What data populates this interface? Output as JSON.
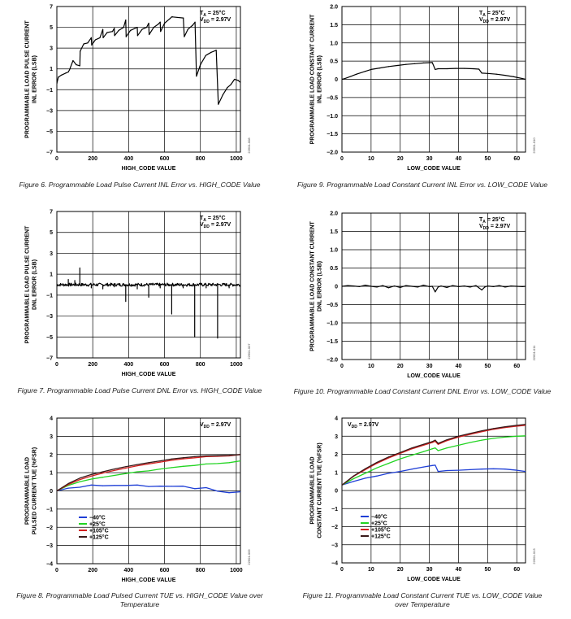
{
  "chart_data": [
    {
      "type": "line",
      "xlabel": "HIGH_CODE VALUE",
      "ylabel": [
        "PROGRAMMABLE LOAD PULSE CURRENT",
        "INL ERROR (LSB)"
      ],
      "xlim": [
        0,
        1023
      ],
      "ylim": [
        -7,
        7
      ],
      "xticks": [
        "0",
        "200",
        "400",
        "600",
        "800",
        "1000"
      ],
      "yticks": [
        "7",
        "5",
        "3",
        "1",
        "−1",
        "−3",
        "−5",
        "−7"
      ],
      "conditions": [
        {
          "main": "T",
          "sub": "A",
          "rest": " = 25°C"
        },
        {
          "main": "V",
          "sub": "DD",
          "rest": " = 2.97V"
        }
      ],
      "caption": "Figure 6. Programmable Load Pulse Current INL Error vs. HIGH_CODE Value",
      "figure_id": "22601-008",
      "grid": true,
      "series": [
        {
          "color": "#000000",
          "x": [
            0,
            8,
            25,
            50,
            64,
            70,
            90,
            108,
            128,
            130,
            150,
            172,
            192,
            194,
            215,
            240,
            256,
            258,
            280,
            310,
            320,
            322,
            345,
            372,
            384,
            386,
            410,
            435,
            448,
            450,
            475,
            500,
            512,
            514,
            540,
            565,
            576,
            578,
            600,
            628,
            640,
            645,
            705,
            710,
            730,
            757,
            770,
            778,
            800,
            830,
            860,
            875,
            888,
            900,
            925,
            950,
            970,
            990,
            1010,
            1023
          ],
          "y": [
            -0.4,
            0.2,
            0.4,
            0.6,
            0.7,
            0.9,
            1.8,
            1.4,
            1.3,
            2.7,
            3.4,
            3.5,
            4.0,
            3.3,
            3.8,
            4.0,
            4.8,
            4.0,
            4.5,
            4.6,
            4.9,
            4.2,
            4.7,
            5.0,
            5.7,
            4.1,
            4.7,
            4.9,
            5.0,
            4.2,
            4.8,
            5.0,
            5.4,
            4.3,
            5.0,
            5.3,
            5.5,
            4.6,
            5.4,
            5.8,
            6.0,
            6.0,
            5.9,
            4.1,
            4.8,
            5.2,
            5.5,
            0.3,
            1.4,
            2.3,
            2.6,
            2.7,
            2.8,
            -2.4,
            -1.5,
            -0.8,
            -0.5,
            0.0,
            -0.1,
            -0.3
          ]
        }
      ]
    },
    {
      "type": "line",
      "xlabel": "LOW_CODE VALUE",
      "ylabel": [
        "PROGRAMMABLE LOAD CONSTANT CURRENT",
        "INL ERROR (LSB)"
      ],
      "xlim": [
        0,
        63
      ],
      "ylim": [
        -2,
        2
      ],
      "xticks": [
        "0",
        "10",
        "20",
        "30",
        "40",
        "50",
        "60"
      ],
      "yticks": [
        "2.0",
        "1.5",
        "1.0",
        "0.5",
        "0",
        "−0.5",
        "−1.0",
        "−1.5",
        "−2.0"
      ],
      "conditions": [
        {
          "main": "T",
          "sub": "A",
          "rest": " = 25°C"
        },
        {
          "main": "V",
          "sub": "DD",
          "rest": " = 2.97V"
        }
      ],
      "caption": "Figure 9. Programmable Load Constant Current INL Error vs. LOW_CODE Value",
      "figure_id": "22601-010",
      "grid": true,
      "series": [
        {
          "color": "#000000",
          "x": [
            0,
            1,
            3,
            5,
            8,
            10,
            13,
            16,
            19,
            22,
            25,
            28,
            31,
            32,
            33,
            36,
            39,
            42,
            45,
            47,
            48,
            50,
            53,
            56,
            59,
            62,
            63
          ],
          "y": [
            0.0,
            0.02,
            0.08,
            0.14,
            0.22,
            0.27,
            0.31,
            0.35,
            0.38,
            0.41,
            0.43,
            0.45,
            0.46,
            0.27,
            0.29,
            0.29,
            0.3,
            0.3,
            0.29,
            0.28,
            0.17,
            0.16,
            0.14,
            0.11,
            0.07,
            0.02,
            0.0
          ]
        }
      ]
    },
    {
      "type": "line",
      "xlabel": "HIGH_CODE VALUE",
      "ylabel": [
        "PROGRAMMABLE LOAD PULSE CURRENT",
        "DNL ERROR (LSB)"
      ],
      "xlim": [
        0,
        1023
      ],
      "ylim": [
        -7,
        7
      ],
      "xticks": [
        "0",
        "200",
        "400",
        "600",
        "800",
        "1000"
      ],
      "yticks": [
        "7",
        "5",
        "3",
        "1",
        "−1",
        "−3",
        "−5",
        "−7"
      ],
      "conditions": [
        {
          "main": "T",
          "sub": "A",
          "rest": " = 25°C"
        },
        {
          "main": "V",
          "sub": "DD",
          "rest": " = 2.97V"
        }
      ],
      "caption": "Figure 7. Programmable Load Pulse Current DNL Error vs. HIGH_CODE Value",
      "figure_id": "22601-007",
      "grid": true,
      "series": [
        {
          "color": "#000000",
          "baseline": 0,
          "noise": 0.15,
          "spikes": [
            [
              64,
              0.5
            ],
            [
              100,
              0.4
            ],
            [
              128,
              1.6
            ],
            [
              192,
              -0.3
            ],
            [
              256,
              -0.4
            ],
            [
              320,
              -0.2
            ],
            [
              384,
              -1.6
            ],
            [
              448,
              -0.4
            ],
            [
              512,
              -1.2
            ],
            [
              576,
              -0.3
            ],
            [
              640,
              -2.8
            ],
            [
              704,
              -0.3
            ],
            [
              768,
              -5.0
            ],
            [
              832,
              -0.3
            ],
            [
              896,
              -5.1
            ],
            [
              960,
              -0.3
            ]
          ]
        }
      ]
    },
    {
      "type": "line",
      "xlabel": "LOW_CODE VALUE",
      "ylabel": [
        "PROGRAMMABLE LOAD CONSTANT CURRENT",
        "DNL ERROR (LSB)"
      ],
      "xlim": [
        0,
        63
      ],
      "ylim": [
        -2,
        2
      ],
      "xticks": [
        "0",
        "10",
        "20",
        "30",
        "40",
        "50",
        "60"
      ],
      "yticks": [
        "2.0",
        "1.5",
        "1.0",
        "0.5",
        "0",
        "−0.5",
        "−1.0",
        "−1.5",
        "−2.0"
      ],
      "conditions": [
        {
          "main": "T",
          "sub": "A",
          "rest": " = 25°C"
        },
        {
          "main": "V",
          "sub": "DD",
          "rest": " = 2.97V"
        }
      ],
      "caption": "Figure 10. Programmable Load Constant Current DNL Error vs. LOW_CODE Value",
      "figure_id": "22601-011",
      "grid": true,
      "series": [
        {
          "color": "#000000",
          "x": [
            0,
            2,
            4,
            6,
            8,
            10,
            12,
            14,
            16,
            18,
            20,
            22,
            24,
            26,
            28,
            30,
            31,
            32,
            33,
            34,
            36,
            38,
            40,
            42,
            44,
            46,
            47,
            48,
            49,
            50,
            52,
            54,
            56,
            58,
            60,
            62,
            63
          ],
          "y": [
            0.0,
            0.02,
            0.01,
            -0.01,
            0.03,
            0.0,
            -0.02,
            0.02,
            -0.04,
            0.01,
            -0.03,
            0.02,
            0.0,
            -0.02,
            0.03,
            -0.01,
            0.0,
            -0.15,
            -0.02,
            0.01,
            -0.03,
            0.02,
            -0.01,
            0.01,
            -0.02,
            0.02,
            -0.04,
            -0.1,
            -0.02,
            0.01,
            -0.01,
            0.02,
            -0.02,
            0.01,
            0.0,
            -0.01,
            0.0
          ]
        }
      ]
    },
    {
      "type": "line",
      "xlabel": "HIGH_CODE VALUE",
      "ylabel": [
        "PROGRAMMABLE LOAD",
        "PULSED CURRENT TUE (%FSR)"
      ],
      "xlim": [
        0,
        1023
      ],
      "ylim": [
        -4,
        4
      ],
      "xticks": [
        "0",
        "200",
        "400",
        "600",
        "800",
        "1000"
      ],
      "yticks": [
        "4",
        "3",
        "2",
        "1",
        "0",
        "−1",
        "−2",
        "−3",
        "−4"
      ],
      "conditions": [
        {
          "main": "V",
          "sub": "DD",
          "rest": " = 2.97V"
        }
      ],
      "caption": [
        "Figure 8. Programmable Load Pulsed Current TUE vs. HIGH_CODE Value over",
        "Temperature"
      ],
      "figure_id": "22601-009",
      "grid": true,
      "legend": "lower-left",
      "series": [
        {
          "name": "−40°C",
          "color": "#1f3fd6",
          "x": [
            0,
            64,
            128,
            192,
            256,
            320,
            384,
            448,
            512,
            576,
            640,
            704,
            768,
            832,
            896,
            960,
            1023
          ],
          "y": [
            0.0,
            0.15,
            0.2,
            0.32,
            0.28,
            0.3,
            0.3,
            0.32,
            0.24,
            0.26,
            0.25,
            0.26,
            0.12,
            0.18,
            -0.02,
            -0.1,
            -0.05
          ]
        },
        {
          "name": "+25°C",
          "color": "#22d422",
          "x": [
            0,
            64,
            128,
            192,
            256,
            320,
            384,
            448,
            512,
            576,
            640,
            704,
            768,
            832,
            896,
            960,
            1023
          ],
          "y": [
            0.0,
            0.3,
            0.5,
            0.65,
            0.75,
            0.85,
            0.95,
            1.05,
            1.1,
            1.2,
            1.28,
            1.35,
            1.4,
            1.48,
            1.5,
            1.55,
            1.65
          ]
        },
        {
          "name": "+105°C",
          "color": "#d41f1f",
          "x": [
            0,
            64,
            128,
            192,
            256,
            320,
            384,
            448,
            512,
            576,
            640,
            704,
            768,
            832,
            896,
            960,
            1023
          ],
          "y": [
            0.0,
            0.35,
            0.62,
            0.82,
            0.98,
            1.12,
            1.25,
            1.38,
            1.48,
            1.58,
            1.68,
            1.76,
            1.82,
            1.88,
            1.9,
            1.92,
            2.0
          ]
        },
        {
          "name": "+125°C",
          "color": "#3a1a1a",
          "x": [
            0,
            64,
            128,
            192,
            256,
            320,
            384,
            448,
            512,
            576,
            640,
            704,
            768,
            832,
            896,
            960,
            1023
          ],
          "y": [
            0.0,
            0.4,
            0.7,
            0.9,
            1.05,
            1.2,
            1.33,
            1.45,
            1.55,
            1.65,
            1.75,
            1.82,
            1.88,
            1.92,
            1.93,
            1.95,
            2.0
          ]
        }
      ]
    },
    {
      "type": "line",
      "xlabel": "LOW_CODE VALUE",
      "ylabel": [
        "PROGRAMMABLE LOAD",
        "CONSTANT CURRENT TUE (%FSR)"
      ],
      "xlim": [
        0,
        63
      ],
      "ylim": [
        -4,
        4
      ],
      "xticks": [
        "0",
        "10",
        "20",
        "30",
        "40",
        "50",
        "60"
      ],
      "yticks": [
        "4",
        "3",
        "2",
        "1",
        "0",
        "−1",
        "−2",
        "−3",
        "−4"
      ],
      "conditions": [
        {
          "main": "V",
          "sub": "DD",
          "rest": " = 2.97V"
        }
      ],
      "caption": [
        "Figure 11. Programmable Load Constant Current TUE vs. LOW_CODE Value",
        "over Temperature"
      ],
      "figure_id": "22601-013",
      "grid": true,
      "legend": "lower-left",
      "series": [
        {
          "name": "−40°C",
          "color": "#1f3fd6",
          "x": [
            0,
            4,
            8,
            12,
            16,
            20,
            24,
            28,
            31,
            32,
            33,
            36,
            40,
            44,
            48,
            52,
            56,
            60,
            63
          ],
          "y": [
            0.3,
            0.5,
            0.68,
            0.8,
            0.95,
            1.05,
            1.18,
            1.3,
            1.38,
            1.4,
            1.05,
            1.1,
            1.12,
            1.15,
            1.18,
            1.2,
            1.18,
            1.12,
            1.05
          ]
        },
        {
          "name": "+25°C",
          "color": "#22d422",
          "x": [
            0,
            4,
            8,
            12,
            16,
            20,
            24,
            28,
            31,
            32,
            33,
            36,
            40,
            44,
            48,
            52,
            56,
            60,
            63
          ],
          "y": [
            0.3,
            0.65,
            0.95,
            1.25,
            1.5,
            1.75,
            1.95,
            2.15,
            2.3,
            2.35,
            2.2,
            2.35,
            2.5,
            2.65,
            2.78,
            2.88,
            2.95,
            3.0,
            3.02
          ]
        },
        {
          "name": "+105°C",
          "color": "#d41f1f",
          "x": [
            0,
            4,
            8,
            12,
            16,
            20,
            24,
            28,
            31,
            32,
            33,
            36,
            40,
            44,
            48,
            52,
            56,
            60,
            63
          ],
          "y": [
            0.3,
            0.78,
            1.15,
            1.5,
            1.8,
            2.05,
            2.3,
            2.5,
            2.65,
            2.72,
            2.55,
            2.75,
            2.95,
            3.1,
            3.25,
            3.38,
            3.48,
            3.55,
            3.6
          ]
        },
        {
          "name": "+125°C",
          "color": "#3a1a1a",
          "x": [
            0,
            4,
            8,
            12,
            16,
            20,
            24,
            28,
            31,
            32,
            33,
            36,
            40,
            44,
            48,
            52,
            56,
            60,
            63
          ],
          "y": [
            0.3,
            0.8,
            1.2,
            1.55,
            1.85,
            2.1,
            2.35,
            2.55,
            2.7,
            2.78,
            2.6,
            2.8,
            3.0,
            3.15,
            3.3,
            3.42,
            3.52,
            3.6,
            3.65
          ]
        }
      ]
    }
  ]
}
